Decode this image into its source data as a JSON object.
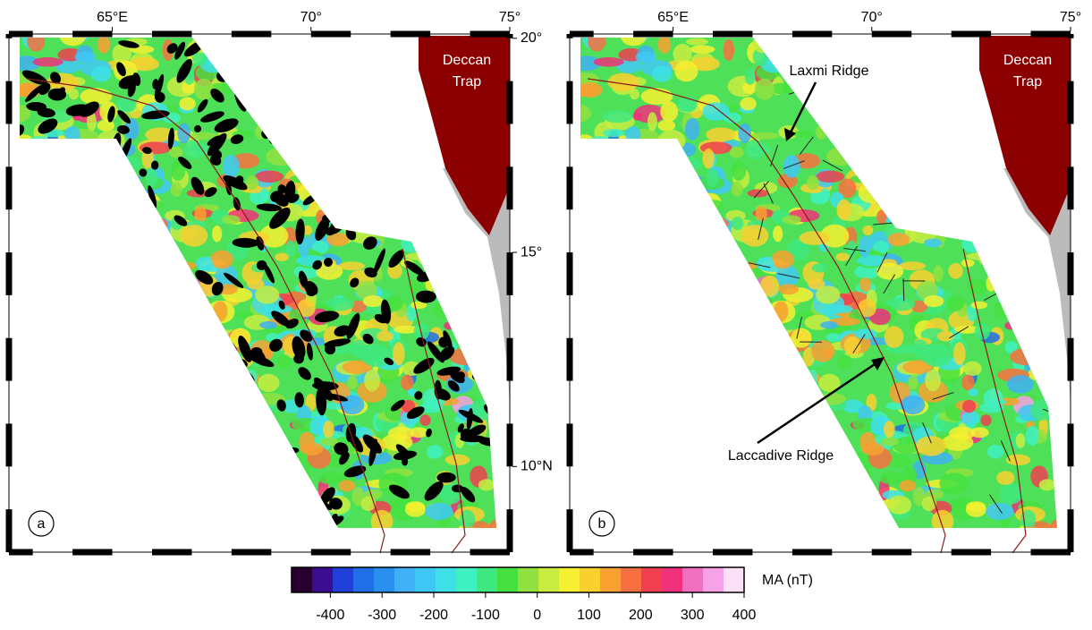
{
  "xlim": [
    62.4,
    75
  ],
  "ylim": [
    8,
    20.1
  ],
  "lon_ticks": [
    {
      "value": 65,
      "label": "65°E"
    },
    {
      "value": 70,
      "label": "70°"
    },
    {
      "value": 75,
      "label": "75°"
    }
  ],
  "lat_ticks": [
    {
      "value": 20,
      "label": "20°"
    },
    {
      "value": 15,
      "label": "15°"
    },
    {
      "value": 10,
      "label": "10°N"
    }
  ],
  "panels": [
    {
      "label": "a",
      "region_label": [
        "Deccan",
        "Trap"
      ]
    },
    {
      "label": "b",
      "region_label": [
        "Deccan",
        "Trap"
      ],
      "annotations": [
        "Laxmi Ridge",
        "Laccadive Ridge"
      ]
    }
  ],
  "colorbar": {
    "title": "MA (nT)",
    "lim": [
      -475,
      400
    ],
    "ticks": [
      -400,
      -300,
      -200,
      -100,
      0,
      100,
      200,
      300,
      400
    ],
    "colors": [
      "#2a0033",
      "#3a0f8f",
      "#1f3fd6",
      "#1e6fe8",
      "#2a90f0",
      "#3fb0f5",
      "#40c8f5",
      "#3de0e8",
      "#3ff0c0",
      "#40e880",
      "#45e040",
      "#90e040",
      "#c8ec40",
      "#f5f030",
      "#f8d030",
      "#f8a030",
      "#f87040",
      "#f04050",
      "#f0307a",
      "#f070c0",
      "#f8a0e8",
      "#fce0f8"
    ]
  }
}
